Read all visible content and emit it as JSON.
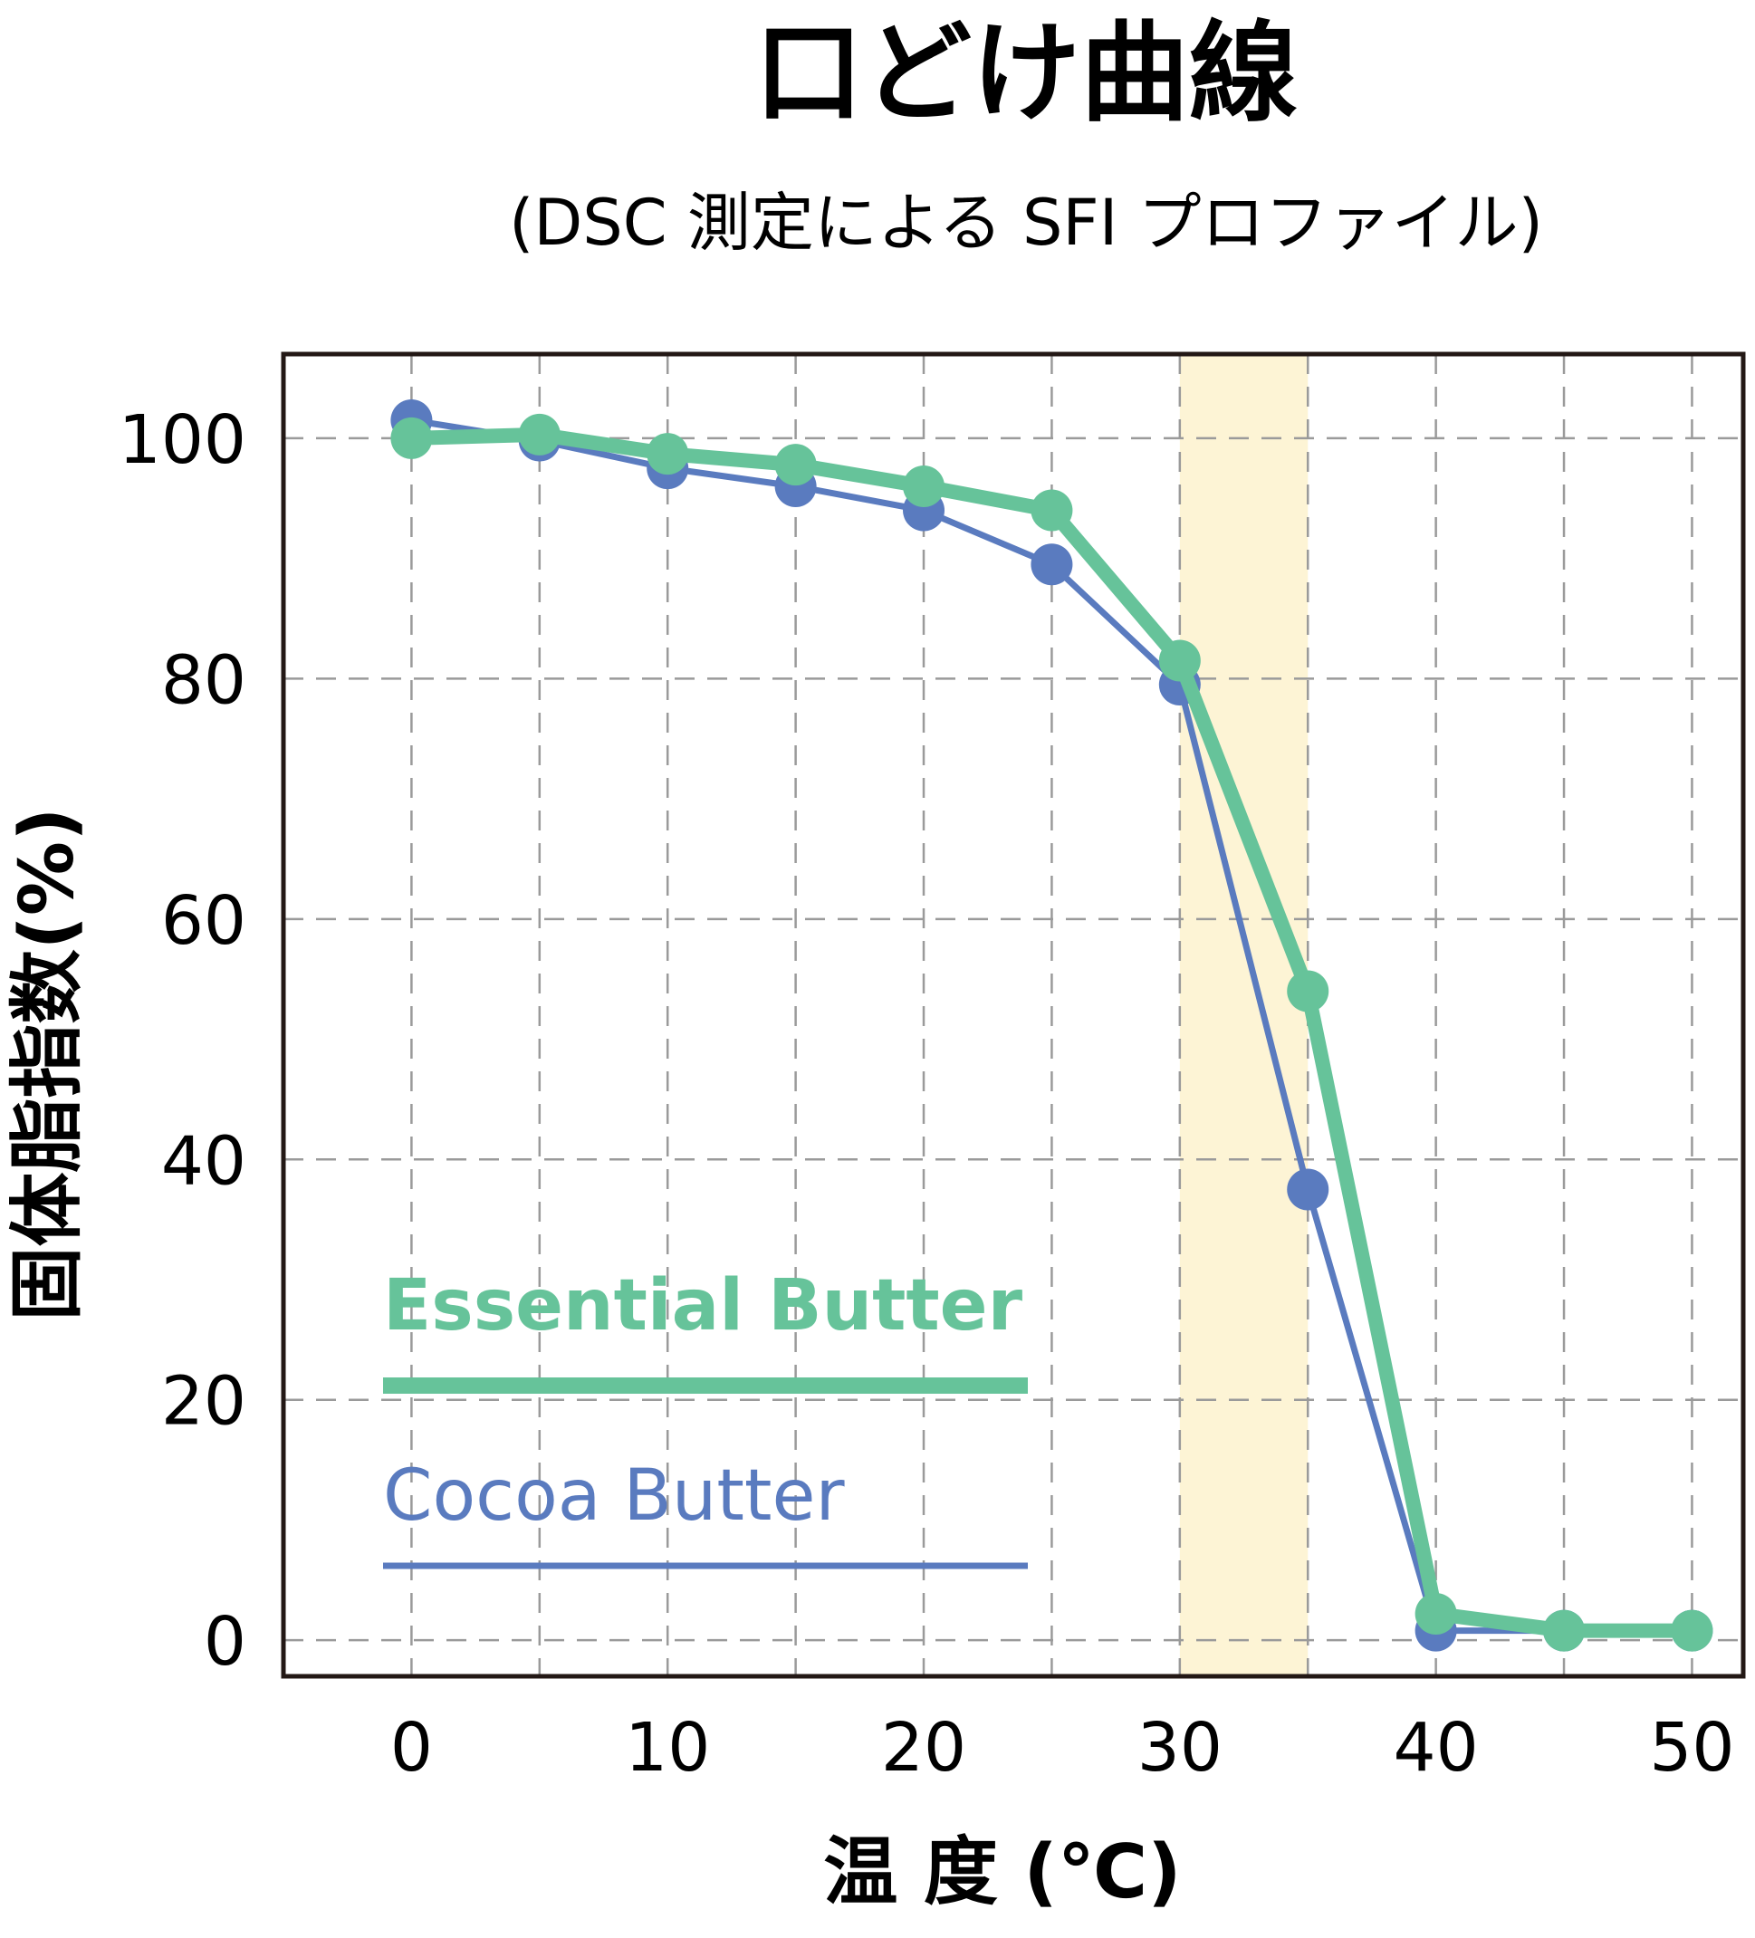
{
  "chart_data": {
    "type": "line",
    "title": "口どけ曲線",
    "subtitle": "(DSC 測定による SFI プロファイル)",
    "xlabel": "温 度 (℃)",
    "ylabel": "固体脂指数(%)",
    "xlim": [
      -5,
      52
    ],
    "ylim": [
      -3,
      107
    ],
    "xticks": [
      0,
      10,
      20,
      30,
      40,
      50
    ],
    "yticks": [
      0,
      20,
      40,
      60,
      80,
      100
    ],
    "grid": true,
    "legend": "bottom-left",
    "highlight_band": {
      "x_from": 30,
      "x_to": 35,
      "color": "#fdf4d5"
    },
    "series": [
      {
        "name": "Cocoa Butter",
        "color": "#5a7bbf",
        "x": [
          0,
          5,
          10,
          15,
          20,
          25,
          30,
          35,
          40,
          45,
          50
        ],
        "values": [
          101.5,
          99.8,
          97.5,
          96.0,
          94.0,
          89.5,
          79.5,
          37.5,
          0.8,
          0.8,
          0.8
        ]
      },
      {
        "name": "Essential Butter",
        "color": "#66c39a",
        "x": [
          0,
          5,
          10,
          15,
          20,
          25,
          30,
          35,
          40,
          45,
          50
        ],
        "values": [
          100.0,
          100.3,
          98.7,
          97.8,
          96.0,
          94.0,
          81.5,
          54.0,
          2.2,
          0.8,
          0.8
        ]
      }
    ]
  }
}
